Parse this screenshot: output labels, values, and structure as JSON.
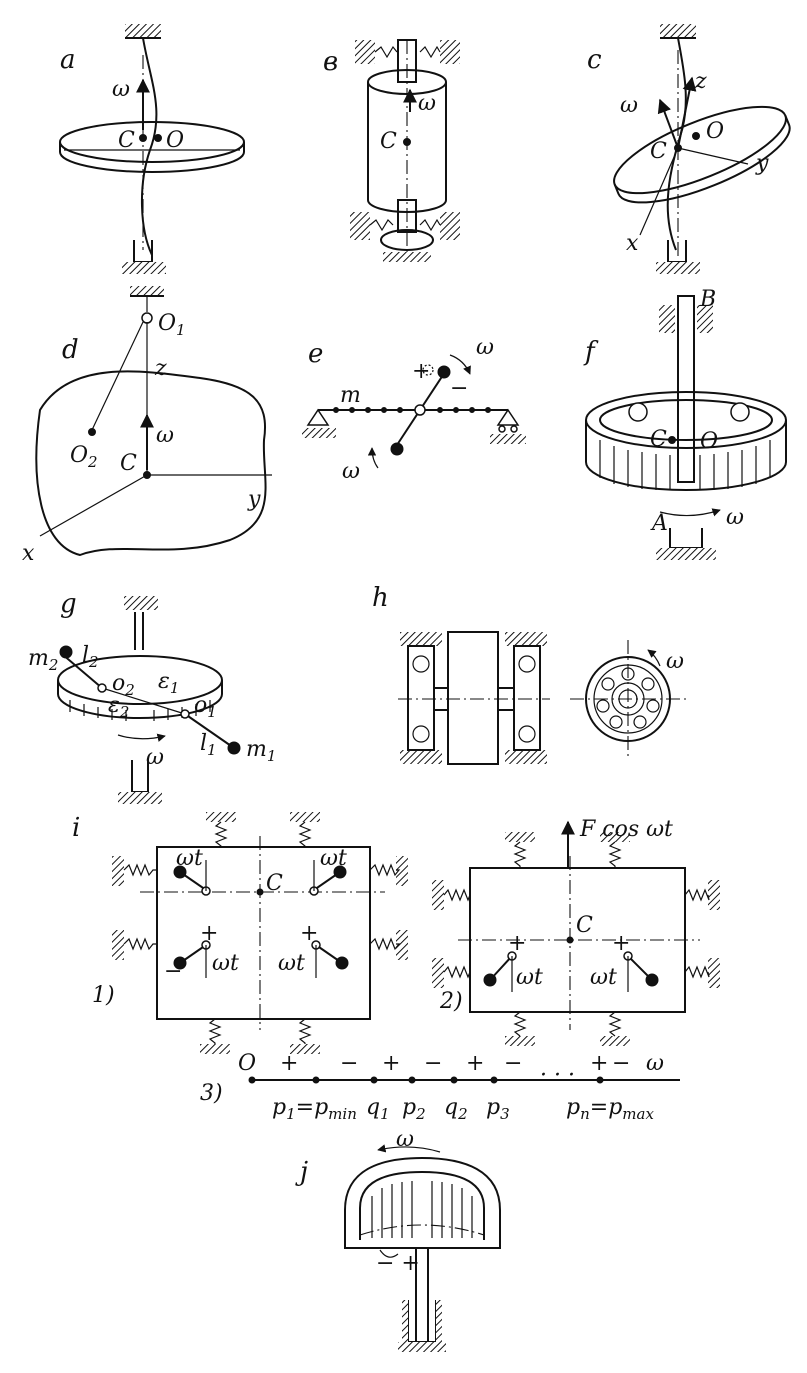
{
  "panels": {
    "a": {
      "label": "a",
      "omega": "ω",
      "c": "C",
      "o": "O"
    },
    "b": {
      "label": "в",
      "omega": "ω",
      "c": "C"
    },
    "c": {
      "label": "c",
      "omega": "ω",
      "c": "C",
      "o": "O",
      "z": "z",
      "y": "y",
      "x": "x"
    },
    "d": {
      "label": "d",
      "o1": "O",
      "o1_sub": "1",
      "o2": "O",
      "o2_sub": "2",
      "z": "z",
      "omega": "ω",
      "c": "C",
      "y": "y",
      "x": "x"
    },
    "e": {
      "label": "e",
      "m": "m",
      "omega_top": "ω",
      "omega_bottom": "ω",
      "plus": "+",
      "minus": "−"
    },
    "f": {
      "label": "f",
      "b": "B",
      "c": "C",
      "o": "O",
      "a": "A",
      "omega": "ω"
    },
    "g": {
      "label": "g",
      "m2": "m",
      "m2_sub": "2",
      "l2": "l",
      "l2_sub": "2",
      "o2": "o",
      "o2_sub": "2",
      "eps1": "ε",
      "eps1_sub": "1",
      "o1": "o",
      "o1_sub": "1",
      "eps2": "ε",
      "eps2_sub": "2",
      "l1": "l",
      "l1_sub": "1",
      "m1": "m",
      "m1_sub": "1",
      "omega": "ω"
    },
    "h": {
      "label": "h",
      "omega": "ω"
    },
    "i": {
      "label": "i",
      "sub1": "1)",
      "sub2": "2)",
      "sub3": "3)",
      "omega_t": "ωt",
      "c": "C",
      "force": "F cos ωt",
      "plus": "+",
      "minus": "−",
      "axis": {
        "origin": "O",
        "omega": "ω",
        "signs": [
          "+",
          "−",
          "+",
          "−",
          "+",
          "−",
          "+",
          "−"
        ],
        "dots": "· · ·",
        "ticks": [
          {
            "main": "p",
            "sub": "1",
            "extra": "=p",
            "extra_sub": "min"
          },
          {
            "main": "q",
            "sub": "1"
          },
          {
            "main": "p",
            "sub": "2"
          },
          {
            "main": "q",
            "sub": "2"
          },
          {
            "main": "p",
            "sub": "3"
          },
          {
            "main": "p",
            "sub": "n",
            "extra": "=p",
            "extra_sub": "max"
          }
        ]
      }
    },
    "j": {
      "label": "j",
      "omega": "ω",
      "signs": "− +"
    }
  }
}
